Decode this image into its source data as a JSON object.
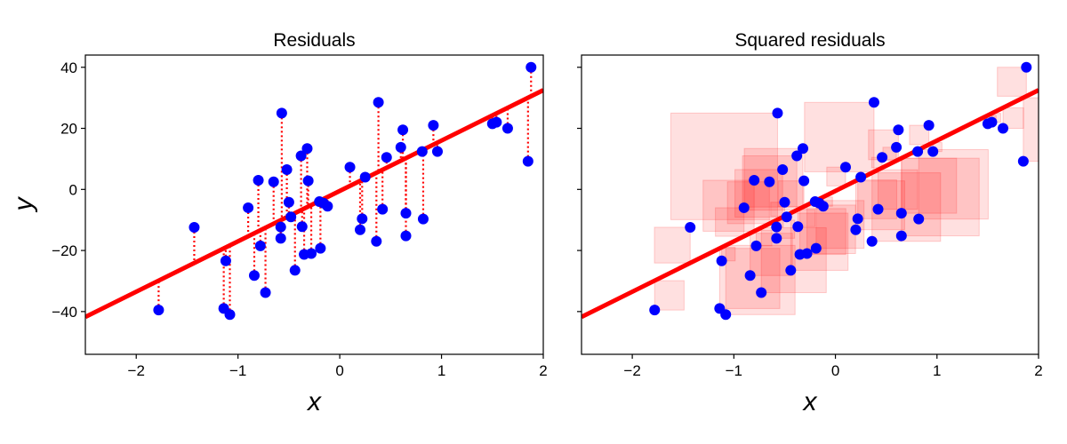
{
  "chart_data": [
    {
      "type": "scatter",
      "title": "Residuals",
      "xlabel": "x",
      "ylabel": "y",
      "xlim": [
        -2.5,
        2
      ],
      "ylim": [
        -54,
        44
      ],
      "xticks": [
        -2,
        -1,
        0,
        1,
        2
      ],
      "xtick_labels": [
        "−2",
        "−1",
        "0",
        "1",
        "2"
      ],
      "yticks": [
        -40,
        -20,
        0,
        20,
        40
      ],
      "ytick_labels": [
        "−40",
        "−20",
        "0",
        "20",
        "40"
      ],
      "residual_style": "dotted-lines",
      "fit_line": {
        "slope": 16.5,
        "intercept": -0.5,
        "color": "#ff0000"
      },
      "point_color": "#0000ff",
      "residual_color": "#ff0000",
      "points": {
        "x": [
          -1.78,
          -1.43,
          -1.14,
          -1.12,
          -1.08,
          -0.9,
          -0.84,
          -0.8,
          -0.78,
          -0.73,
          -0.65,
          -0.58,
          -0.58,
          -0.57,
          -0.52,
          -0.5,
          -0.48,
          -0.44,
          -0.38,
          -0.37,
          -0.35,
          -0.32,
          -0.31,
          -0.28,
          -0.2,
          -0.19,
          -0.16,
          -0.12,
          0.1,
          0.2,
          0.22,
          0.25,
          0.36,
          0.38,
          0.42,
          0.46,
          0.6,
          0.62,
          0.65,
          0.65,
          0.81,
          0.82,
          0.92,
          0.96,
          1.5,
          1.54,
          1.65,
          1.85,
          1.88
        ],
        "y": [
          -39.5,
          -12.4,
          -39,
          -23.4,
          -41,
          -6,
          -28.2,
          3,
          -18.5,
          -33.8,
          2.5,
          -16,
          -12.3,
          25,
          6.5,
          -4.2,
          -9,
          -26.5,
          11,
          -12.2,
          -21.3,
          13.4,
          2.8,
          -21,
          -4,
          -19.3,
          -4.5,
          -5.5,
          7.3,
          -13.2,
          -9.6,
          4,
          -17,
          28.5,
          -6.5,
          10.5,
          13.8,
          19.5,
          -15.2,
          -7.8,
          12.4,
          -9.7,
          21,
          12.4,
          21.5,
          22,
          20,
          9.2,
          40
        ]
      }
    },
    {
      "type": "scatter",
      "title": "Squared residuals",
      "xlabel": "x",
      "ylabel": "",
      "xlim": [
        -2.5,
        2
      ],
      "ylim": [
        -54,
        44
      ],
      "xticks": [
        -2,
        -1,
        0,
        1,
        2
      ],
      "xtick_labels": [
        "−2",
        "−1",
        "0",
        "1",
        "2"
      ],
      "yticks": [
        -40,
        -20,
        0,
        20,
        40
      ],
      "ytick_labels": [],
      "residual_style": "squares",
      "fit_line": {
        "slope": 16.5,
        "intercept": -0.5,
        "color": "#ff0000"
      },
      "point_color": "#0000ff",
      "square_fill": "#ff0000",
      "points": {
        "x": [
          -1.78,
          -1.43,
          -1.14,
          -1.12,
          -1.08,
          -0.9,
          -0.84,
          -0.8,
          -0.78,
          -0.73,
          -0.65,
          -0.58,
          -0.58,
          -0.57,
          -0.52,
          -0.5,
          -0.48,
          -0.44,
          -0.38,
          -0.37,
          -0.35,
          -0.32,
          -0.31,
          -0.28,
          -0.2,
          -0.19,
          -0.16,
          -0.12,
          0.1,
          0.2,
          0.22,
          0.25,
          0.36,
          0.38,
          0.42,
          0.46,
          0.6,
          0.62,
          0.65,
          0.65,
          0.81,
          0.82,
          0.92,
          0.96,
          1.5,
          1.54,
          1.65,
          1.85,
          1.88
        ],
        "y": [
          -39.5,
          -12.4,
          -39,
          -23.4,
          -41,
          -6,
          -28.2,
          3,
          -18.5,
          -33.8,
          2.5,
          -16,
          -12.3,
          25,
          6.5,
          -4.2,
          -9,
          -26.5,
          11,
          -12.2,
          -21.3,
          13.4,
          2.8,
          -21,
          -4,
          -19.3,
          -4.5,
          -5.5,
          7.3,
          -13.2,
          -9.6,
          4,
          -17,
          28.5,
          -6.5,
          10.5,
          13.8,
          19.5,
          -15.2,
          -7.8,
          12.4,
          -9.7,
          21,
          12.4,
          21.5,
          22,
          20,
          9.2,
          40
        ]
      }
    }
  ]
}
